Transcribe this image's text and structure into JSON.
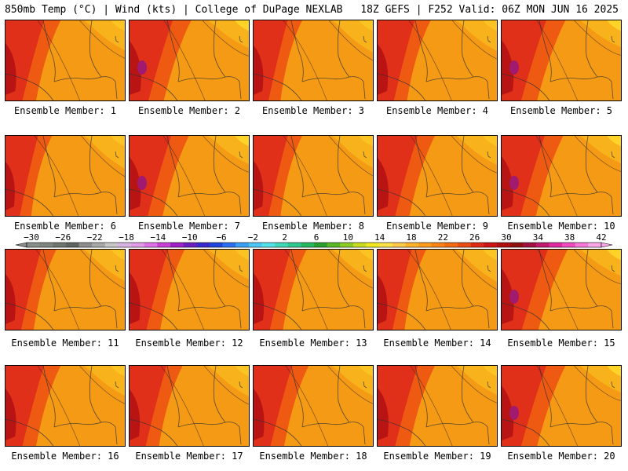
{
  "header": {
    "left": "850mb Temp (°C) | Wind (kts) | College of DuPage NEXLAB",
    "right": "18Z GEFS | F252 Valid: 06Z MON JUN 16 2025"
  },
  "panels": [
    {
      "label": "Ensemble Member: 1",
      "hot": 0.55
    },
    {
      "label": "Ensemble Member: 2",
      "hot": 0.7
    },
    {
      "label": "Ensemble Member: 3",
      "hot": 0.4
    },
    {
      "label": "Ensemble Member: 4",
      "hot": 0.5
    },
    {
      "label": "Ensemble Member: 5",
      "hot": 0.75
    },
    {
      "label": "Ensemble Member: 6",
      "hot": 0.35
    },
    {
      "label": "Ensemble Member: 7",
      "hot": 0.65
    },
    {
      "label": "Ensemble Member: 8",
      "hot": 0.4
    },
    {
      "label": "Ensemble Member: 9",
      "hot": 0.6
    },
    {
      "label": "Ensemble Member: 10",
      "hot": 0.7
    },
    {
      "label": "Ensemble Member: 11",
      "hot": 0.45
    },
    {
      "label": "Ensemble Member: 12",
      "hot": 0.55
    },
    {
      "label": "Ensemble Member: 13",
      "hot": 0.5
    },
    {
      "label": "Ensemble Member: 14",
      "hot": 0.4
    },
    {
      "label": "Ensemble Member: 15",
      "hot": 0.8
    },
    {
      "label": "Ensemble Member: 16",
      "hot": 0.55
    },
    {
      "label": "Ensemble Member: 17",
      "hot": 0.5
    },
    {
      "label": "Ensemble Member: 18",
      "hot": 0.55
    },
    {
      "label": "Ensemble Member: 19",
      "hot": 0.6
    },
    {
      "label": "Ensemble Member: 20",
      "hot": 0.75
    }
  ],
  "colorbar": {
    "tick_labels": [
      "-30",
      "-26",
      "-22",
      "-18",
      "-14",
      "-10",
      "-6",
      "-2",
      "2",
      "6",
      "10",
      "14",
      "18",
      "22",
      "26",
      "30",
      "34",
      "38",
      "42"
    ],
    "colors": [
      "#888f8a",
      "#7f857f",
      "#6f7570",
      "#5f6460",
      "#8e8e8e",
      "#a8a8a8",
      "#c8c8c8",
      "#d7b4e2",
      "#e09ae6",
      "#e070e8",
      "#c840d8",
      "#a020c8",
      "#6a1fc0",
      "#3a2acc",
      "#1f45dd",
      "#2a6ff0",
      "#3aa0f5",
      "#4ec6f5",
      "#54e0e8",
      "#3fd8b8",
      "#2ec890",
      "#25b860",
      "#2aa030",
      "#58b825",
      "#8ccc25",
      "#c8dc20",
      "#f0e820",
      "#ffe24a",
      "#ffc94a",
      "#ffb32a",
      "#ff9c1c",
      "#f98314",
      "#f26a12",
      "#ea4e12",
      "#e02b14",
      "#cc1414",
      "#b01010",
      "#901010",
      "#a01040",
      "#c01a70",
      "#e02aa0",
      "#f04ac0",
      "#f878d8",
      "#fba8e8"
    ]
  }
}
